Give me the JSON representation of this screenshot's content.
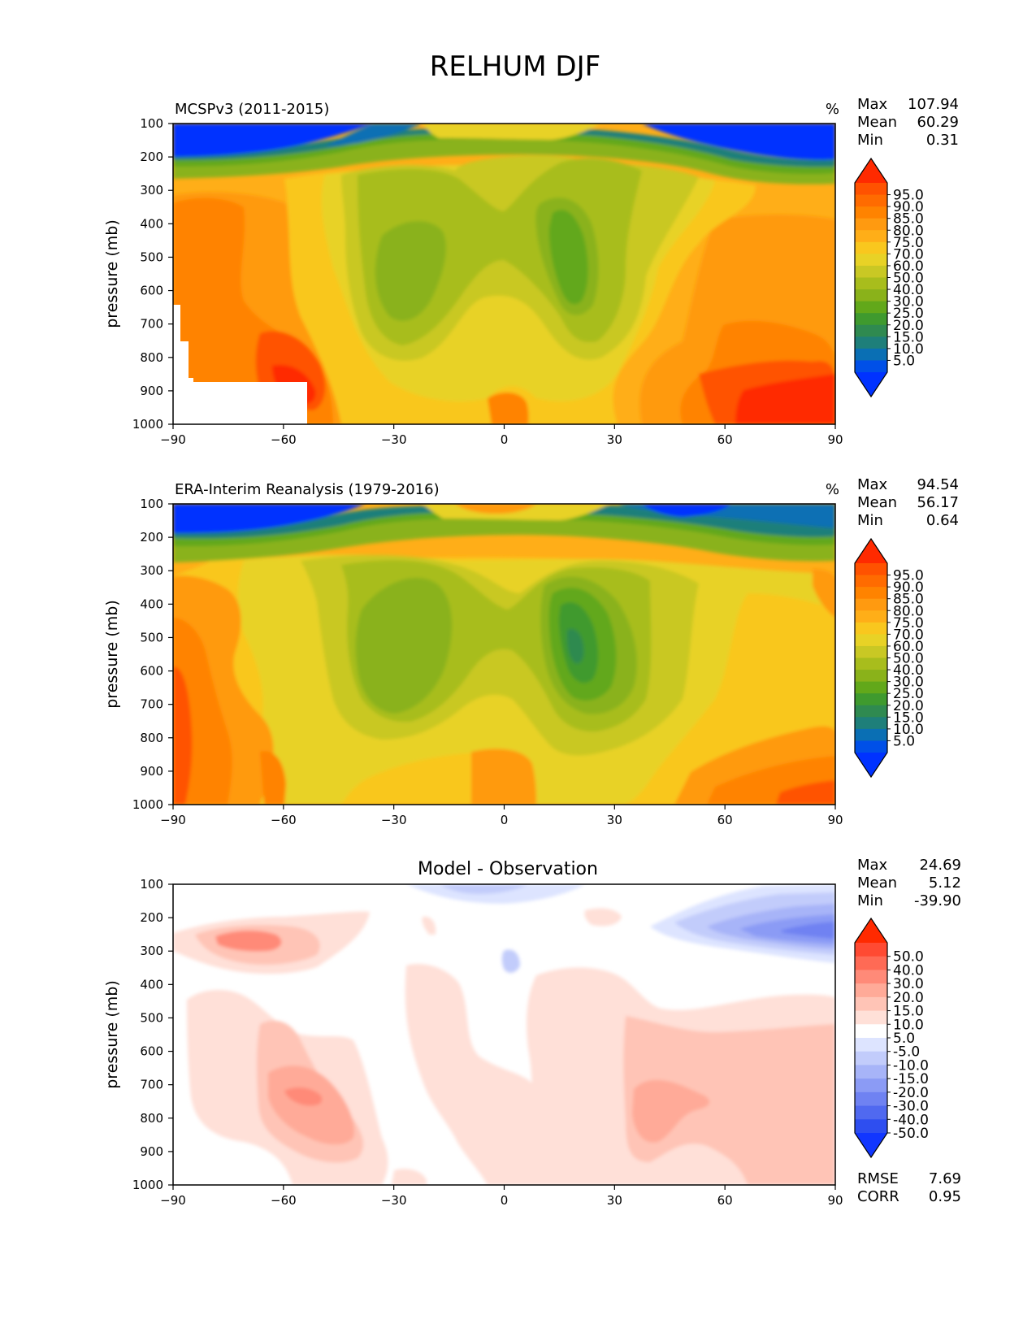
{
  "figure": {
    "title": "RELHUM DJF"
  },
  "chart_data": [
    {
      "type": "contour",
      "name": "model",
      "title_left": "MCSPv3 (2011-2015)",
      "units": "%",
      "ylabel": "pressure (mb)",
      "xlabel": "",
      "xlim": [
        -90,
        90
      ],
      "ylim": [
        1000,
        100
      ],
      "xticks": [
        "−90",
        "−60",
        "−30",
        "0",
        "30",
        "60",
        "90"
      ],
      "yticks": [
        "100",
        "200",
        "300",
        "400",
        "500",
        "600",
        "700",
        "800",
        "900",
        "1000"
      ],
      "stats": {
        "max_label": "Max",
        "max": "107.94",
        "mean_label": "Mean",
        "mean": "60.29",
        "min_label": "Min",
        "min": "0.31"
      },
      "colorbar": {
        "labels": [
          "95.0",
          "90.0",
          "85.0",
          "80.0",
          "75.0",
          "70.0",
          "60.0",
          "50.0",
          "40.0",
          "30.0",
          "25.0",
          "20.0",
          "15.0",
          "10.0",
          "5.0"
        ],
        "colors": [
          "#ff2a00",
          "#ff5200",
          "#ff6b00",
          "#ff8300",
          "#ff9a10",
          "#ffae18",
          "#f9c71e",
          "#e8d226",
          "#c9c824",
          "#a8bd1c",
          "#8ab21a",
          "#62a81a",
          "#3f9a2e",
          "#2f8a50",
          "#1e7f7a",
          "#0a6fb4",
          "#0050e8",
          "#0032ff"
        ]
      }
    },
    {
      "type": "contour",
      "name": "observation",
      "title_left": "ERA-Interim Reanalysis (1979-2016)",
      "units": "%",
      "ylabel": "pressure (mb)",
      "xlabel": "",
      "xlim": [
        -90,
        90
      ],
      "ylim": [
        1000,
        100
      ],
      "xticks": [
        "−90",
        "−60",
        "−30",
        "0",
        "30",
        "60",
        "90"
      ],
      "yticks": [
        "100",
        "200",
        "300",
        "400",
        "500",
        "600",
        "700",
        "800",
        "900",
        "1000"
      ],
      "stats": {
        "max_label": "Max",
        "max": "94.54",
        "mean_label": "Mean",
        "mean": "56.17",
        "min_label": "Min",
        "min": "0.64"
      },
      "colorbar": {
        "labels": [
          "95.0",
          "90.0",
          "85.0",
          "80.0",
          "75.0",
          "70.0",
          "60.0",
          "50.0",
          "40.0",
          "30.0",
          "25.0",
          "20.0",
          "15.0",
          "10.0",
          "5.0"
        ],
        "colors": [
          "#ff2a00",
          "#ff5200",
          "#ff6b00",
          "#ff8300",
          "#ff9a10",
          "#ffae18",
          "#f9c71e",
          "#e8d226",
          "#c9c824",
          "#a8bd1c",
          "#8ab21a",
          "#62a81a",
          "#3f9a2e",
          "#2f8a50",
          "#1e7f7a",
          "#0a6fb4",
          "#0050e8",
          "#0032ff"
        ]
      }
    },
    {
      "type": "contour",
      "name": "difference",
      "title_center": "Model - Observation",
      "ylabel": "pressure (mb)",
      "xlabel": "",
      "xlim": [
        -90,
        90
      ],
      "ylim": [
        1000,
        100
      ],
      "xticks": [
        "−90",
        "−60",
        "−30",
        "0",
        "30",
        "60",
        "90"
      ],
      "yticks": [
        "100",
        "200",
        "300",
        "400",
        "500",
        "600",
        "700",
        "800",
        "900",
        "1000"
      ],
      "stats": {
        "max_label": "Max",
        "max": "24.69",
        "mean_label": "Mean",
        "mean": "5.12",
        "min_label": "Min",
        "min": "-39.90"
      },
      "metrics": {
        "rmse_label": "RMSE",
        "rmse": "7.69",
        "corr_label": "CORR",
        "corr": "0.95"
      },
      "colorbar": {
        "labels": [
          "50.0",
          "40.0",
          "30.0",
          "20.0",
          "15.0",
          "10.0",
          "5.0",
          "-5.0",
          "-10.0",
          "-15.0",
          "-20.0",
          "-30.0",
          "-40.0",
          "-50.0"
        ],
        "colors": [
          "#ff2a00",
          "#ff4a32",
          "#ff6a55",
          "#ff8a78",
          "#ffaa98",
          "#ffc4b6",
          "#ffe0d8",
          "#ffffff",
          "#dde4ff",
          "#c2ccfb",
          "#a7b4f8",
          "#8b9bf5",
          "#6f82f2",
          "#5069f0",
          "#2e4ef0",
          "#1136ff"
        ]
      }
    }
  ]
}
